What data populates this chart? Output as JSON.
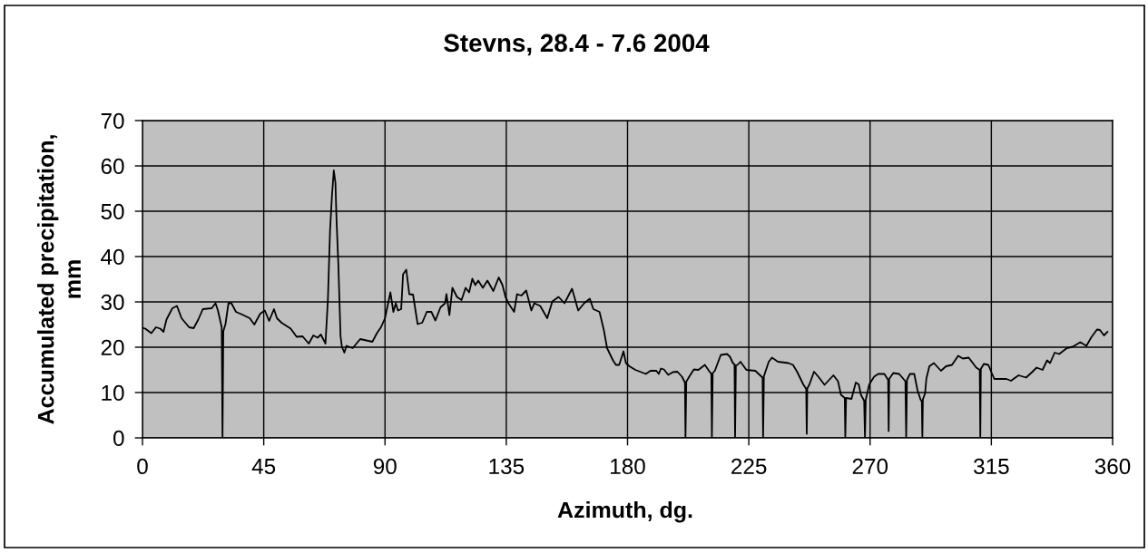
{
  "chart_data": {
    "type": "line",
    "title": "Stevns, 28.4 - 7.6 2004",
    "xlabel": "Azimuth, dg.",
    "ylabel": "Accumulated precipitation,\nmm",
    "xlim": [
      0,
      360
    ],
    "xticks": [
      0,
      45,
      90,
      135,
      180,
      225,
      270,
      315,
      360
    ],
    "ylim": [
      0,
      70
    ],
    "yticks": [
      0,
      10,
      20,
      30,
      40,
      50,
      60,
      70
    ],
    "grid": true,
    "marker": "none",
    "line_style": "solid",
    "series": [
      {
        "color": "#000000",
        "x": [
          0,
          1,
          3.3,
          5,
          6.6,
          7.8,
          8.9,
          11.1,
          12.8,
          14.5,
          17.3,
          19,
          20.7,
          22.4,
          25.7,
          27.1,
          28,
          29.4,
          29.7,
          30,
          30.8,
          31.9,
          33,
          34.7,
          37,
          39.8,
          41.5,
          43.7,
          45.4,
          47,
          48.8,
          49.9,
          51.6,
          55,
          57.2,
          59.4,
          61.7,
          63.4,
          65,
          66.2,
          67.9,
          68.8,
          69.6,
          70.3,
          71,
          71.6,
          72,
          72.7,
          73.5,
          74,
          74.9,
          75.7,
          78,
          80.8,
          85.3,
          87,
          88.5,
          90,
          92,
          93.1,
          94,
          94.8,
          96,
          96.7,
          97.9,
          99,
          100.4,
          102.1,
          103.8,
          105.5,
          107.2,
          108.7,
          110.6,
          112.3,
          112.8,
          113.9,
          115,
          116.7,
          118.4,
          119.9,
          121.2,
          122.4,
          123.5,
          124.6,
          126.3,
          128,
          130.2,
          132.2,
          133.6,
          134.7,
          135.8,
          137.9,
          139,
          140.6,
          142.4,
          144.3,
          145.4,
          147.6,
          150.2,
          152.1,
          154.4,
          156.6,
          159.4,
          161.7,
          163.9,
          166,
          167.3,
          169.6,
          171.2,
          172.4,
          174.6,
          175.7,
          176.9,
          178.5,
          179.4,
          180.7,
          182.9,
          186.8,
          188.5,
          190.7,
          191.6,
          192.4,
          193.5,
          195.1,
          196.8,
          198.5,
          200.2,
          201.3,
          201.5,
          201.8,
          202.9,
          204.6,
          206.3,
          208.7,
          210.2,
          211.1,
          211.3,
          211.6,
          212.4,
          214.6,
          216.9,
          218,
          219.1,
          219.7,
          219.9,
          220.2,
          220.8,
          221.9,
          224.1,
          227.4,
          230.1,
          230.3,
          230.6,
          232.4,
          233.6,
          235.8,
          239.7,
          241.4,
          243,
          245.2,
          246.3,
          246.5,
          246.7,
          247.5,
          249.2,
          250.8,
          253.1,
          256.4,
          258.1,
          259.2,
          260.6,
          260.8,
          261.1,
          263.1,
          264.7,
          265.8,
          266.6,
          267.8,
          268.1,
          268.4,
          269.7,
          271.5,
          273,
          275.3,
          276.7,
          276.9,
          277.1,
          278.6,
          280.8,
          283.1,
          283.4,
          283.7,
          284.8,
          286.4,
          287.6,
          288.7,
          289.2,
          289.4,
          289.6,
          290.4,
          290.9,
          292,
          293.7,
          296.3,
          298.2,
          300.4,
          302.7,
          304.4,
          306.6,
          309.4,
          310.7,
          310.9,
          311.1,
          312.2,
          313.9,
          315,
          316.1,
          317.8,
          320.6,
          322.3,
          325.1,
          327.9,
          330.1,
          331.8,
          334,
          335.7,
          336.8,
          338.5,
          340.2,
          343,
          345.2,
          348,
          350.3,
          352,
          354.2,
          355.3,
          356.8,
          358.1
        ],
        "values": [
          24.3,
          24.1,
          23.1,
          24.4,
          24.1,
          23.4,
          26.1,
          28.6,
          29.1,
          26.4,
          24.4,
          24.2,
          26.1,
          28.4,
          28.6,
          29.7,
          28.1,
          24.4,
          0,
          23.5,
          25.1,
          29.7,
          29.7,
          27.8,
          27.2,
          26.4,
          25,
          27.4,
          28.1,
          25.8,
          28.4,
          26.4,
          25.4,
          24.1,
          22.3,
          22.4,
          20.8,
          22.6,
          22.1,
          22.8,
          20.8,
          30.4,
          45.7,
          53.3,
          59,
          56.3,
          48.3,
          38,
          22.4,
          20.1,
          18.8,
          20.3,
          19.8,
          21.8,
          21.2,
          23.1,
          24.4,
          26.4,
          32.1,
          27.8,
          29.7,
          28.1,
          28.4,
          36.1,
          37.1,
          31.7,
          31.6,
          25.1,
          25.4,
          27.8,
          27.8,
          25.9,
          28.8,
          29.7,
          31.7,
          27.1,
          33.1,
          31.1,
          30.4,
          33.1,
          32.1,
          35.1,
          33.7,
          34.7,
          33.1,
          34.7,
          32.4,
          35.4,
          33.7,
          31.1,
          29.7,
          27.8,
          31.7,
          31.4,
          32.5,
          28.1,
          29.7,
          29.1,
          26.4,
          30.1,
          31.1,
          29.7,
          32.9,
          28.1,
          29.7,
          30.7,
          28.4,
          27.8,
          23.8,
          19.8,
          17.1,
          16.1,
          16.1,
          19.1,
          16.5,
          15.8,
          15,
          14.1,
          14.8,
          14.8,
          14.1,
          15.3,
          15.1,
          13.9,
          14.5,
          14.6,
          13.5,
          12.2,
          0,
          12.4,
          13.5,
          15.1,
          15,
          16.1,
          14.8,
          14.1,
          0,
          14.3,
          14.8,
          18.3,
          18.5,
          17.9,
          16.5,
          16.2,
          0,
          16,
          16.1,
          16.8,
          15,
          14.8,
          13.3,
          0,
          13.6,
          16.8,
          17.7,
          16.8,
          16.5,
          16.1,
          14.5,
          11.8,
          10.8,
          0.9,
          10.9,
          11.8,
          14.6,
          13.5,
          11.7,
          13.8,
          12.5,
          9.5,
          8.8,
          0,
          8.8,
          8.6,
          12.2,
          11.8,
          9.5,
          8.2,
          0,
          8.4,
          11.8,
          13.5,
          14.1,
          14.1,
          12.8,
          1.5,
          13,
          14.3,
          14.1,
          12.5,
          0,
          12.8,
          14.1,
          14.1,
          10.5,
          8.5,
          8,
          0,
          8.5,
          9.8,
          13.1,
          15.8,
          16.5,
          14.8,
          15.8,
          16.1,
          18.1,
          17.5,
          17.7,
          15.5,
          15,
          0,
          15.2,
          16.3,
          16.1,
          14.5,
          13,
          13,
          13,
          12.6,
          13.8,
          13.3,
          14.5,
          15.5,
          15,
          17.1,
          16.5,
          18.8,
          18.5,
          19.8,
          20.1,
          21.1,
          20.3,
          22.1,
          23.9,
          23.8,
          22.6,
          23.4
        ]
      }
    ]
  }
}
